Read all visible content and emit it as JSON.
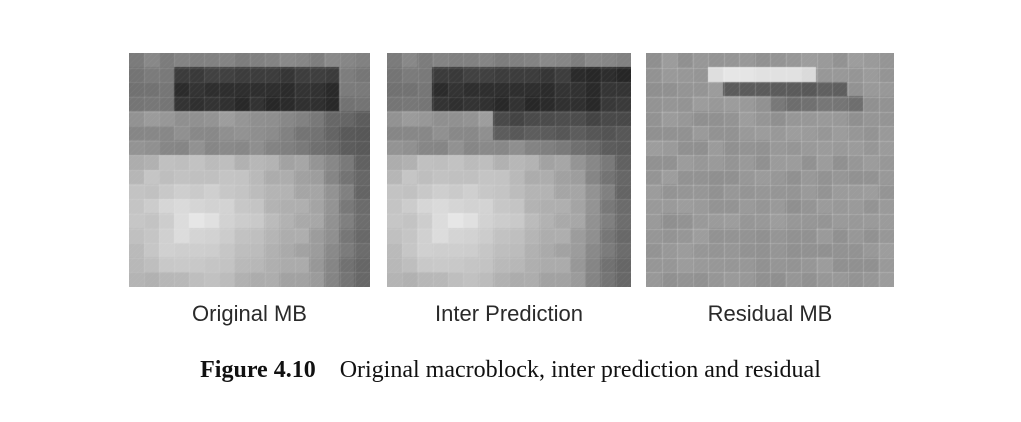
{
  "panels": [
    {
      "id": "original",
      "label": "Original MB"
    },
    {
      "id": "inter",
      "label": "Inter Prediction"
    },
    {
      "id": "residual",
      "label": "Residual MB"
    }
  ],
  "caption": {
    "number": "Figure 4.10",
    "text": "Original macroblock, inter prediction and residual"
  }
}
